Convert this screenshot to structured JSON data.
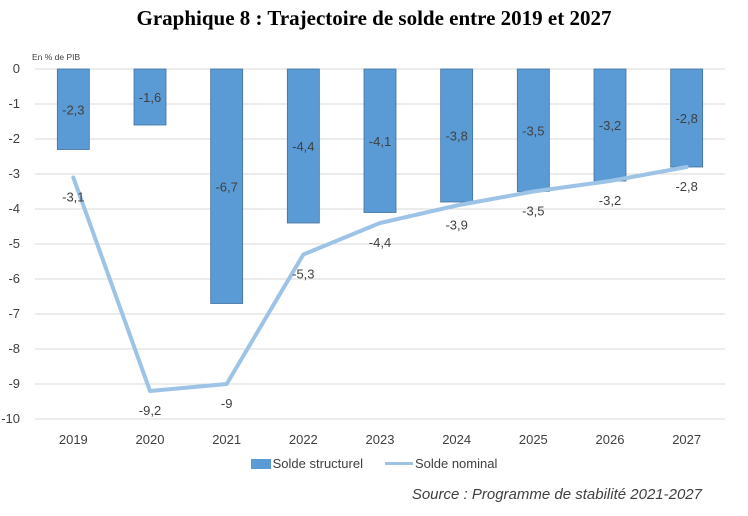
{
  "title": "Graphique 8 : Trajectoire de solde entre 2019 et 2027",
  "unit_label": "En % de PIB",
  "source": "Source :  Programme de stabilité 2021-2027",
  "colors": {
    "bar": "#5b9bd5",
    "bar_border": "#41719c",
    "line": "#9dc3e6",
    "grid": "#d9d9d9",
    "text": "#404040"
  },
  "chart_data": {
    "type": "bar",
    "categories": [
      "2019",
      "2020",
      "2021",
      "2022",
      "2023",
      "2024",
      "2025",
      "2026",
      "2027"
    ],
    "ylim": [
      -10,
      0
    ],
    "yticks": [
      "0",
      "-1",
      "-2",
      "-3",
      "-4",
      "-5",
      "-6",
      "-7",
      "-8",
      "-9",
      "-10"
    ],
    "grid": true,
    "legend_position": "bottom",
    "series": [
      {
        "name": "Solde structurel",
        "type": "bar",
        "values": [
          -2.3,
          -1.6,
          -6.7,
          -4.4,
          -4.1,
          -3.8,
          -3.5,
          -3.2,
          -2.8
        ],
        "labels": [
          "-2,3",
          "-1,6",
          "-6,7",
          "-4,4",
          "-4,1",
          "-3,8",
          "-3,5",
          "-3,2",
          "-2,8"
        ]
      },
      {
        "name": "Solde nominal",
        "type": "line",
        "values": [
          -3.1,
          -9.2,
          -9.0,
          -5.3,
          -4.4,
          -3.9,
          -3.5,
          -3.2,
          -2.8
        ],
        "labels": [
          "-3,1",
          "-9,2",
          "-9",
          "-5,3",
          "-4,4",
          "-3,9",
          "-3,5",
          "-3,2",
          "-2,8"
        ]
      }
    ]
  }
}
